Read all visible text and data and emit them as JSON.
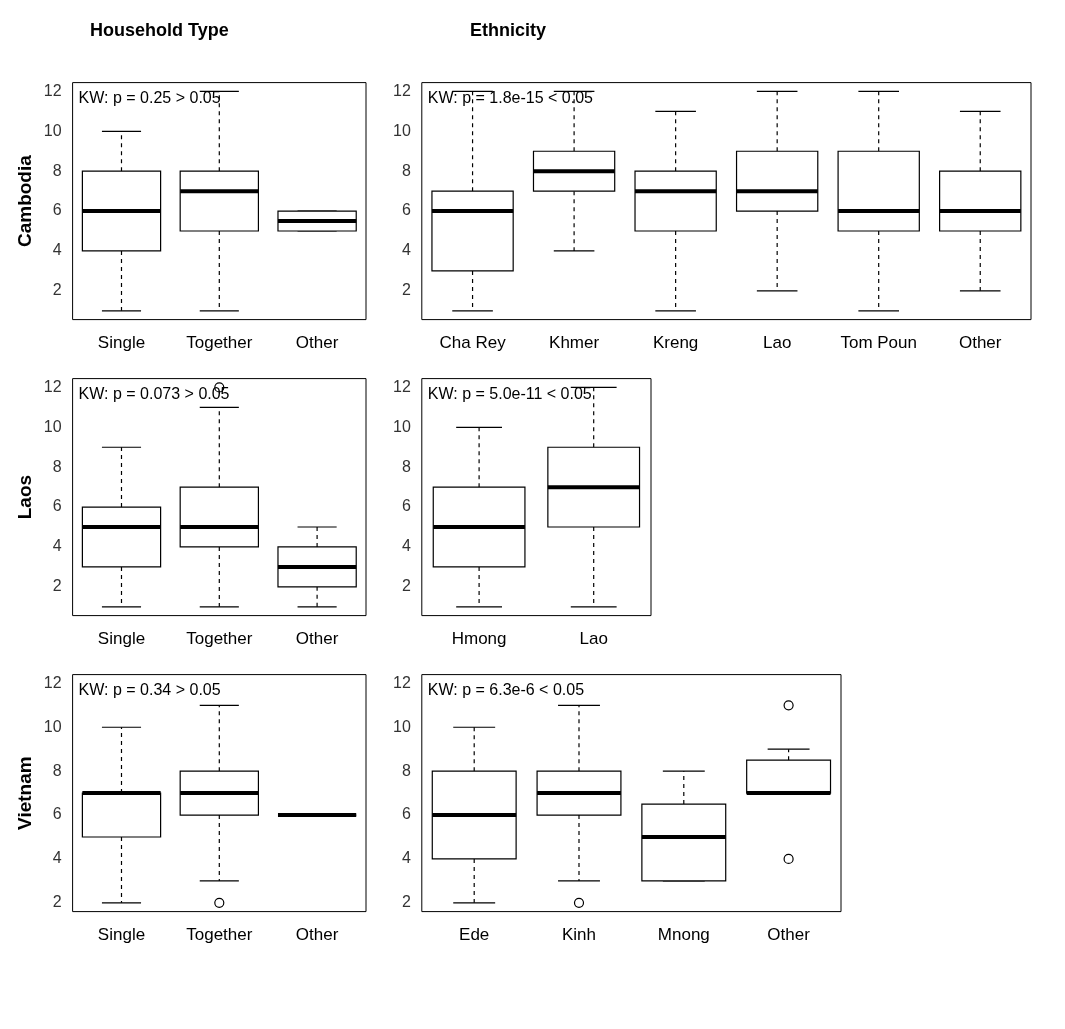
{
  "chart_data": [
    {
      "type": "box",
      "title": "Household Type",
      "ylabel": "Cambodia",
      "categories": [
        "Single",
        "Together",
        "Other"
      ],
      "ylim": [
        0.56,
        12.44
      ],
      "yticks": [
        2,
        4,
        6,
        8,
        10,
        12
      ],
      "grid": false,
      "legend": false,
      "annotations": [
        "KW: p = 0.25 > 0.05"
      ],
      "boxes": [
        {
          "low": 1,
          "q1": 4,
          "median": 6,
          "q3": 8,
          "high": 10
        },
        {
          "low": 1,
          "q1": 5,
          "median": 7,
          "q3": 8,
          "high": 12
        },
        {
          "low": 5,
          "q1": 5,
          "median": 5.5,
          "q3": 6,
          "high": 6
        }
      ]
    },
    {
      "type": "box",
      "title": "Ethnicity",
      "categories": [
        "Cha Rey",
        "Khmer",
        "Kreng",
        "Lao",
        "Tom Poun",
        "Other"
      ],
      "ylim": [
        0.56,
        12.44
      ],
      "yticks": [
        2,
        4,
        6,
        8,
        10,
        12
      ],
      "grid": false,
      "legend": false,
      "annotations": [
        "KW: p = 1.8e-15 < 0.05"
      ],
      "boxes": [
        {
          "low": 1,
          "q1": 3,
          "median": 6,
          "q3": 7,
          "high": 12
        },
        {
          "low": 4,
          "q1": 7,
          "median": 8,
          "q3": 9,
          "high": 12
        },
        {
          "low": 1,
          "q1": 5,
          "median": 7,
          "q3": 8,
          "high": 11
        },
        {
          "low": 2,
          "q1": 6,
          "median": 7,
          "q3": 9,
          "high": 12
        },
        {
          "low": 1,
          "q1": 5,
          "median": 6,
          "q3": 9,
          "high": 12
        },
        {
          "low": 2,
          "q1": 5,
          "median": 6,
          "q3": 8,
          "high": 11
        }
      ]
    },
    {
      "type": "box",
      "ylabel": "Laos",
      "categories": [
        "Single",
        "Together",
        "Other"
      ],
      "ylim": [
        0.56,
        12.44
      ],
      "yticks": [
        2,
        4,
        6,
        8,
        10,
        12
      ],
      "grid": false,
      "legend": false,
      "annotations": [
        "KW: p = 0.073 > 0.05"
      ],
      "boxes": [
        {
          "low": 1,
          "q1": 3,
          "median": 5,
          "q3": 6,
          "high": 9
        },
        {
          "low": 1,
          "q1": 4,
          "median": 5,
          "q3": 7,
          "high": 11,
          "outliers": [
            12
          ]
        },
        {
          "low": 1,
          "q1": 2,
          "median": 3,
          "q3": 4,
          "high": 5
        }
      ]
    },
    {
      "type": "box",
      "categories": [
        "Hmong",
        "Lao"
      ],
      "ylim": [
        0.56,
        12.44
      ],
      "yticks": [
        2,
        4,
        6,
        8,
        10,
        12
      ],
      "grid": false,
      "legend": false,
      "annotations": [
        "KW: p = 5.0e-11 < 0.05"
      ],
      "boxes": [
        {
          "low": 1,
          "q1": 3,
          "median": 5,
          "q3": 7,
          "high": 10
        },
        {
          "low": 1,
          "q1": 5,
          "median": 7,
          "q3": 9,
          "high": 12
        }
      ]
    },
    {
      "type": "box",
      "ylabel": "Vietnam",
      "categories": [
        "Single",
        "Together",
        "Other"
      ],
      "ylim": [
        1.6,
        12.4
      ],
      "yticks": [
        2,
        4,
        6,
        8,
        10,
        12
      ],
      "grid": false,
      "legend": false,
      "annotations": [
        "KW: p = 0.34 > 0.05"
      ],
      "boxes": [
        {
          "low": 2,
          "q1": 5,
          "median": 7,
          "q3": 7,
          "high": 10
        },
        {
          "low": 3,
          "q1": 6,
          "median": 7,
          "q3": 8,
          "high": 11,
          "outliers": [
            2
          ]
        },
        {
          "low": 6,
          "q1": 6,
          "median": 6,
          "q3": 6,
          "high": 6
        }
      ]
    },
    {
      "type": "box",
      "categories": [
        "Ede",
        "Kinh",
        "Mnong",
        "Other"
      ],
      "ylim": [
        1.6,
        12.4
      ],
      "yticks": [
        2,
        4,
        6,
        8,
        10,
        12
      ],
      "grid": false,
      "legend": false,
      "annotations": [
        "KW: p = 6.3e-6 < 0.05"
      ],
      "boxes": [
        {
          "low": 2,
          "q1": 4,
          "median": 6,
          "q3": 8,
          "high": 10
        },
        {
          "low": 3,
          "q1": 6,
          "median": 7,
          "q3": 8,
          "high": 11,
          "outliers": [
            2
          ]
        },
        {
          "low": 3,
          "q1": 3,
          "median": 5,
          "q3": 6.5,
          "high": 8
        },
        {
          "low": 7,
          "q1": 7,
          "median": 7,
          "q3": 8.5,
          "high": 9,
          "outliers": [
            4,
            11
          ]
        }
      ]
    }
  ]
}
